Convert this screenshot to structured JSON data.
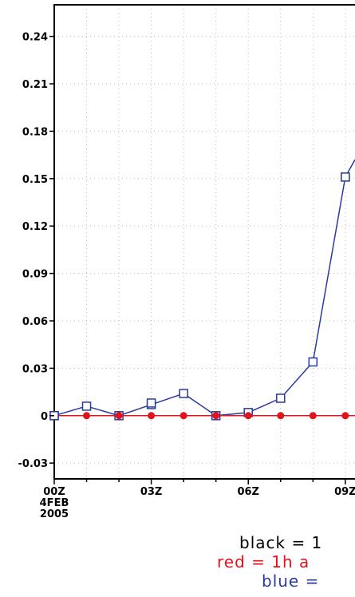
{
  "chart_data": {
    "type": "line",
    "x_tick_labels": [
      "00Z",
      "03Z",
      "06Z",
      "09Z"
    ],
    "x_date_label": [
      "4FEB",
      "2005"
    ],
    "x_ticks_hours": [
      0,
      3,
      6,
      9
    ],
    "x_range_hours": [
      0,
      9.3
    ],
    "y_ticks": [
      -0.03,
      0,
      0.03,
      0.06,
      0.09,
      0.12,
      0.15,
      0.18,
      0.21,
      0.24
    ],
    "y_tick_labels": [
      "-0.03",
      "0",
      "0.03",
      "0.06",
      "0.09",
      "0.12",
      "0.15",
      "0.18",
      "0.21",
      "0.24"
    ],
    "ylim": [
      -0.04,
      0.26
    ],
    "grid": true,
    "series": [
      {
        "color": "#2a3a9e",
        "marker": "square",
        "x_hours": [
          0,
          1,
          2,
          3,
          4,
          5,
          6,
          7,
          8,
          9,
          9.3
        ],
        "values": [
          0.0,
          0.006,
          0.0,
          0.007,
          0.014,
          0.0,
          0.002,
          0.011,
          0.034,
          0.151,
          0.162
        ]
      },
      {
        "color": "#e0141c",
        "marker": "circle",
        "x_hours": [
          0,
          1,
          2,
          3,
          4,
          5,
          6,
          7,
          8,
          9
        ],
        "values": [
          0,
          0,
          0,
          0,
          0,
          0,
          0,
          0,
          0,
          0
        ]
      },
      {
        "color": "#2a3a9e",
        "marker": "square",
        "x_hours": [
          0,
          3,
          9
        ],
        "values": [
          0.0,
          0.008,
          0.151
        ],
        "overlay": true
      }
    ],
    "legend_lines": [
      {
        "text": "black  =  1",
        "color": "#000000"
      },
      {
        "text": "red  =  1h  a",
        "color": "#e0141c"
      },
      {
        "text": "blue  =",
        "color": "#2a3a9e"
      }
    ]
  }
}
